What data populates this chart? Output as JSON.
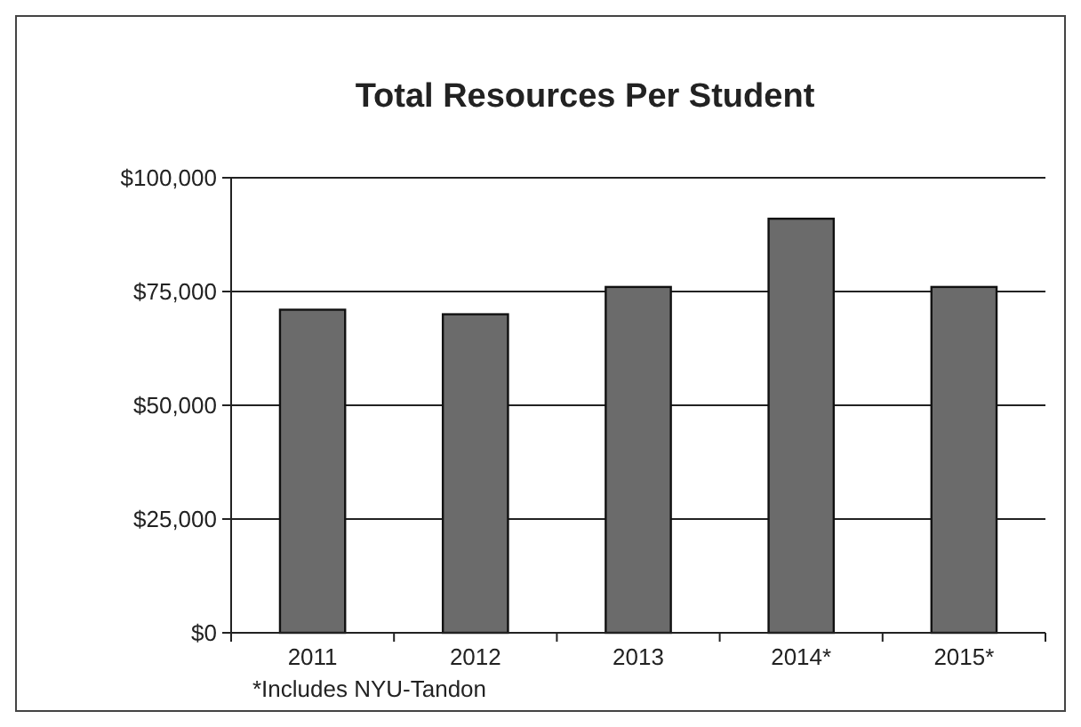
{
  "chart_data": {
    "type": "bar",
    "title": "Total Resources Per Student",
    "categories": [
      "2011",
      "2012",
      "2013",
      "2014*",
      "2015*"
    ],
    "values": [
      71000,
      70000,
      76000,
      91000,
      76000
    ],
    "color": "#6b6b6b",
    "ylim": [
      0,
      100000
    ],
    "yticks": [
      {
        "value": 0,
        "label": "$0"
      },
      {
        "value": 25000,
        "label": "$25,000"
      },
      {
        "value": 50000,
        "label": "$50,000"
      },
      {
        "value": 75000,
        "label": "$75,000"
      },
      {
        "value": 100000,
        "label": "$100,000"
      }
    ],
    "grid": "y",
    "annotations": [
      "*Includes NYU-Tandon"
    ]
  }
}
